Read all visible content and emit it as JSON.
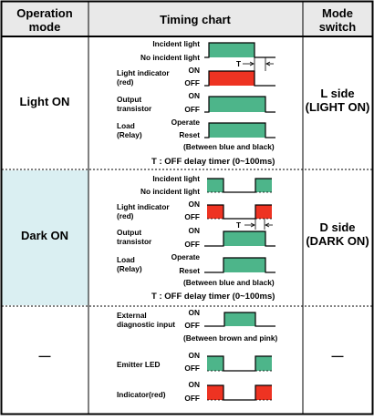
{
  "header": {
    "col1_line1": "Operation",
    "col1_line2": "mode",
    "col2": "Timing chart",
    "col3_line1": "Mode",
    "col3_line2": "switch"
  },
  "rows": [
    {
      "mode": "Light ON",
      "switch_line1": "L side",
      "switch_line2": "(LIGHT ON)",
      "labels": {
        "incident": "Incident light",
        "no_incident": "No incident light",
        "indicator_line1": "Light indicator",
        "indicator_line2": "(red)",
        "output_line1": "Output",
        "output_line2": "transistor",
        "load_line1": "Load",
        "load_line2": "(Relay)",
        "on": "ON",
        "off": "OFF",
        "operate": "Operate",
        "reset": "Reset",
        "t": "T",
        "note": "(Between blue and black)",
        "footer": "T : OFF delay timer (0~100ms)"
      }
    },
    {
      "mode": "Dark ON",
      "switch_line1": "D side",
      "switch_line2": "(DARK ON)",
      "labels": {
        "incident": "Incident light",
        "no_incident": "No incident light",
        "indicator_line1": "Light indicator",
        "indicator_line2": "(red)",
        "output_line1": "Output",
        "output_line2": "transistor",
        "load_line1": "Load",
        "load_line2": "(Relay)",
        "on": "ON",
        "off": "OFF",
        "operate": "Operate",
        "reset": "Reset",
        "t": "T",
        "note": "(Between blue and black)",
        "footer": "T : OFF delay timer (0~100ms)"
      }
    },
    {
      "mode": "—",
      "switch": "—",
      "labels": {
        "ext_line1": "External",
        "ext_line2": "diagnostic input",
        "on": "ON",
        "off": "OFF",
        "note": "(Between brown and pink)",
        "emitter": "Emitter LED",
        "indicator": "Indicator(red)"
      }
    }
  ],
  "colors": {
    "header_bg": "#e9e9e9",
    "dark_mode_bg": "#daeff2",
    "pulse_green": "#4db58a",
    "pulse_red": "#ee3322",
    "line": "#000000"
  }
}
